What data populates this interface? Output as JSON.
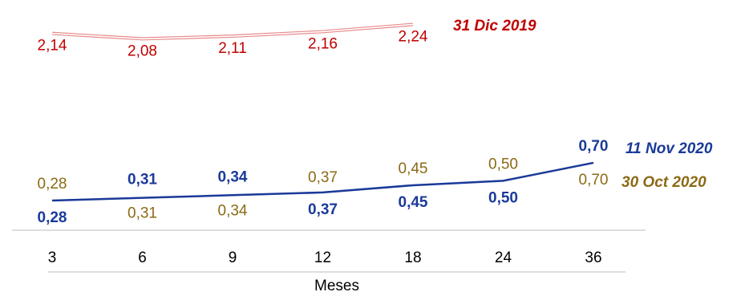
{
  "chart_data": {
    "type": "line",
    "xlabel": "Meses",
    "categories": [
      "3",
      "6",
      "9",
      "12",
      "18",
      "24",
      "36"
    ],
    "series": [
      {
        "name": "31 Dic 2019",
        "color": "#c00000",
        "values": [
          2.14,
          2.08,
          2.11,
          2.16,
          2.24,
          null,
          null
        ],
        "value_labels": [
          "2,14",
          "2,08",
          "2,11",
          "2,16",
          "2,24",
          null,
          null
        ]
      },
      {
        "name": "11 Nov 2020",
        "color": "#1a3a9a",
        "values": [
          0.28,
          0.31,
          0.34,
          0.37,
          0.45,
          0.5,
          0.7
        ],
        "value_labels": [
          "0,28",
          "0,31",
          "0,34",
          "0,37",
          "0,45",
          "0,50",
          "0,70"
        ]
      },
      {
        "name": "30 Oct 2020",
        "color": "#8b6a14",
        "values": [
          0.28,
          0.31,
          0.34,
          0.37,
          0.45,
          0.5,
          0.7
        ],
        "value_labels": [
          "0,28",
          "0,31",
          "0,34",
          "0,37",
          "0,45",
          "0,50",
          "0,70"
        ]
      }
    ]
  }
}
